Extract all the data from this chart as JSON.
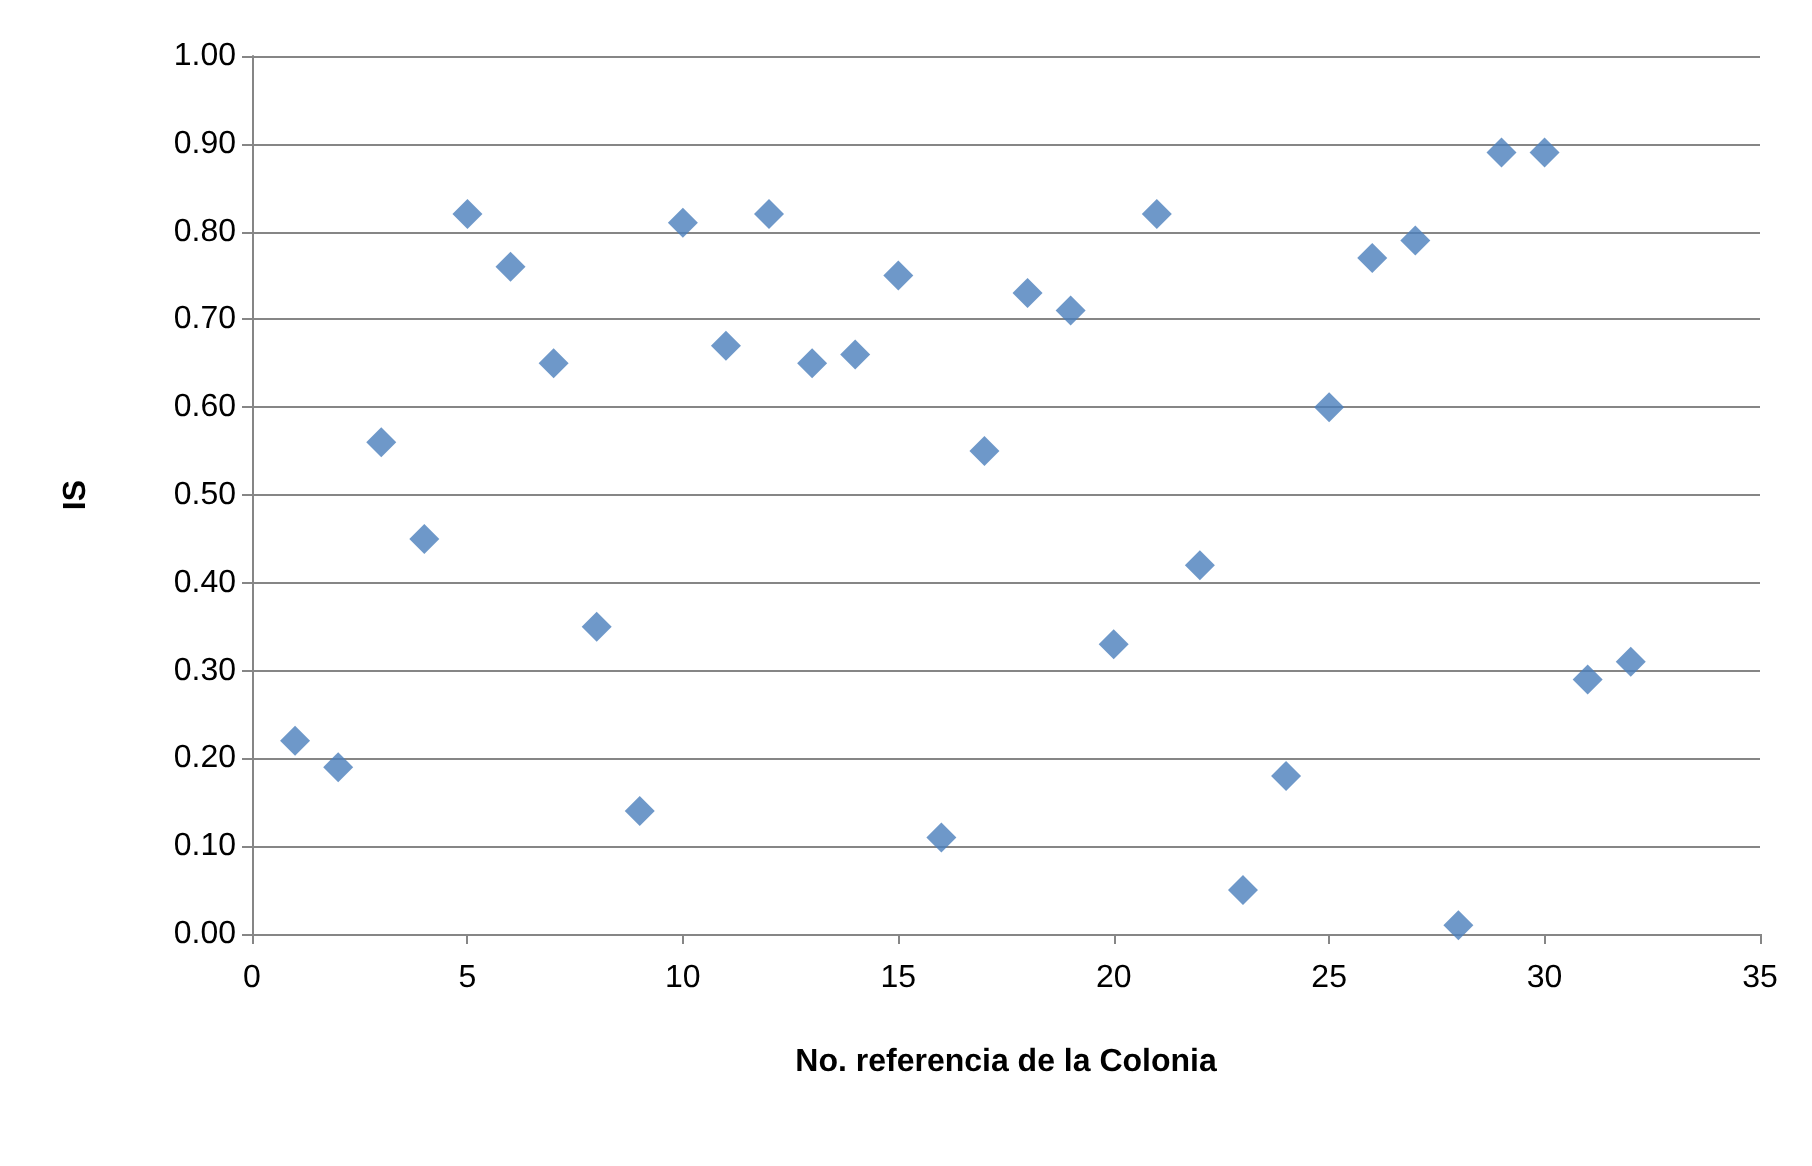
{
  "chart_data": {
    "type": "scatter",
    "xlabel": "No. referencia de la Colonia",
    "ylabel": "IS",
    "x": [
      1,
      2,
      3,
      4,
      5,
      6,
      7,
      8,
      9,
      10,
      11,
      12,
      13,
      14,
      15,
      16,
      17,
      18,
      19,
      20,
      21,
      22,
      23,
      24,
      25,
      26,
      27,
      28,
      29,
      30,
      31,
      32
    ],
    "series": [
      {
        "color": "#4a7ebb",
        "values": [
          0.22,
          0.19,
          0.56,
          0.45,
          0.82,
          0.76,
          0.65,
          0.35,
          0.14,
          0.81,
          0.67,
          0.82,
          0.65,
          0.66,
          0.75,
          0.11,
          0.55,
          0.73,
          0.71,
          0.33,
          0.82,
          0.42,
          0.05,
          0.18,
          0.6,
          0.77,
          0.79,
          0.01,
          0.89,
          0.89,
          0.29,
          0.31
        ]
      }
    ],
    "xlim": [
      0,
      35
    ],
    "xticks": [
      0,
      5,
      10,
      15,
      20,
      25,
      30,
      35
    ],
    "ylim": [
      0,
      1
    ],
    "yticks": [
      {
        "value": 0,
        "label": "0.00"
      },
      {
        "value": 0.1,
        "label": "0.10"
      },
      {
        "value": 0.2,
        "label": "0.20"
      },
      {
        "value": 0.3,
        "label": "0.30"
      },
      {
        "value": 0.4,
        "label": "0.40"
      },
      {
        "value": 0.5,
        "label": "0.50"
      },
      {
        "value": 0.6,
        "label": "0.60"
      },
      {
        "value": 0.7,
        "label": "0.70"
      },
      {
        "value": 0.8,
        "label": "0.80"
      },
      {
        "value": 0.9,
        "label": "0.90"
      },
      {
        "value": 1,
        "label": "1.00"
      }
    ],
    "grid": "y",
    "marker": "diamond"
  }
}
